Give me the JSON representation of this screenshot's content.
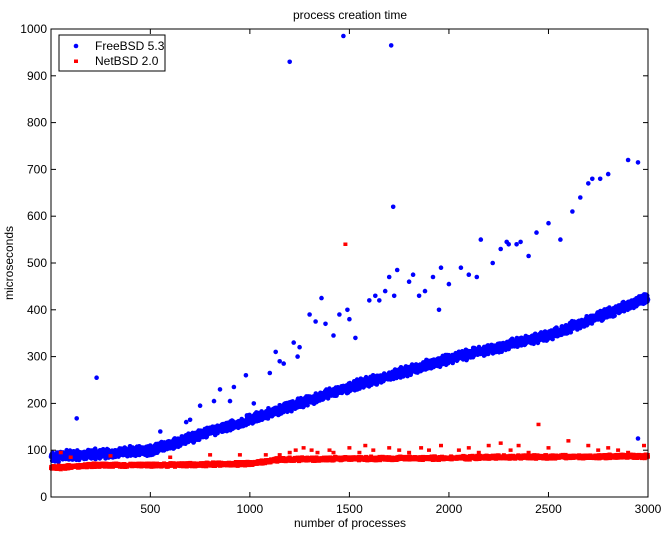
{
  "chart_data": {
    "type": "scatter",
    "title": "process creation time",
    "xlabel": "number of processes",
    "ylabel": "microseconds",
    "xlim": [
      1,
      3000
    ],
    "ylim": [
      0,
      1000
    ],
    "x_ticks": [
      500,
      1000,
      1500,
      2000,
      2500,
      3000
    ],
    "y_ticks": [
      0,
      100,
      200,
      300,
      400,
      500,
      600,
      700,
      800,
      900,
      1000
    ],
    "grid": false,
    "legend_position": "top-left",
    "series": [
      {
        "name": "FreeBSD 5.3",
        "color": "#0000ff",
        "marker": "dot",
        "trend": [
          [
            1,
            85
          ],
          [
            500,
            100
          ],
          [
            1000,
            165
          ],
          [
            1500,
            235
          ],
          [
            2000,
            295
          ],
          [
            2500,
            345
          ],
          [
            3000,
            425
          ]
        ],
        "spread": 12,
        "outliers": [
          [
            80,
            100
          ],
          [
            130,
            168
          ],
          [
            230,
            255
          ],
          [
            550,
            140
          ],
          [
            620,
            105
          ],
          [
            680,
            160
          ],
          [
            700,
            165
          ],
          [
            750,
            195
          ],
          [
            820,
            205
          ],
          [
            850,
            230
          ],
          [
            900,
            205
          ],
          [
            920,
            235
          ],
          [
            980,
            260
          ],
          [
            1020,
            200
          ],
          [
            1100,
            265
          ],
          [
            1130,
            310
          ],
          [
            1150,
            290
          ],
          [
            1170,
            285
          ],
          [
            1200,
            930
          ],
          [
            1220,
            330
          ],
          [
            1240,
            300
          ],
          [
            1250,
            320
          ],
          [
            1300,
            390
          ],
          [
            1330,
            375
          ],
          [
            1360,
            425
          ],
          [
            1380,
            370
          ],
          [
            1420,
            345
          ],
          [
            1450,
            390
          ],
          [
            1470,
            985
          ],
          [
            1490,
            400
          ],
          [
            1500,
            380
          ],
          [
            1530,
            340
          ],
          [
            1600,
            420
          ],
          [
            1630,
            430
          ],
          [
            1650,
            420
          ],
          [
            1680,
            440
          ],
          [
            1700,
            470
          ],
          [
            1710,
            965
          ],
          [
            1720,
            620
          ],
          [
            1725,
            430
          ],
          [
            1740,
            485
          ],
          [
            1800,
            460
          ],
          [
            1820,
            475
          ],
          [
            1850,
            430
          ],
          [
            1880,
            440
          ],
          [
            1920,
            470
          ],
          [
            1950,
            400
          ],
          [
            1960,
            490
          ],
          [
            2000,
            455
          ],
          [
            2060,
            490
          ],
          [
            2100,
            475
          ],
          [
            2140,
            470
          ],
          [
            2160,
            550
          ],
          [
            2220,
            500
          ],
          [
            2260,
            530
          ],
          [
            2290,
            545
          ],
          [
            2300,
            540
          ],
          [
            2340,
            540
          ],
          [
            2360,
            545
          ],
          [
            2400,
            515
          ],
          [
            2440,
            565
          ],
          [
            2500,
            585
          ],
          [
            2560,
            550
          ],
          [
            2620,
            610
          ],
          [
            2660,
            640
          ],
          [
            2700,
            670
          ],
          [
            2720,
            680
          ],
          [
            2760,
            680
          ],
          [
            2800,
            690
          ],
          [
            2900,
            720
          ],
          [
            2950,
            715
          ],
          [
            2950,
            125
          ]
        ]
      },
      {
        "name": "NetBSD 2.0",
        "color": "#ff0000",
        "marker": "square",
        "trend": [
          [
            1,
            62
          ],
          [
            200,
            68
          ],
          [
            500,
            68
          ],
          [
            1000,
            71
          ],
          [
            1150,
            80
          ],
          [
            1500,
            82
          ],
          [
            2000,
            83
          ],
          [
            2200,
            85
          ],
          [
            3000,
            87
          ]
        ],
        "spread": 5,
        "outliers": [
          [
            50,
            95
          ],
          [
            100,
            85
          ],
          [
            300,
            88
          ],
          [
            600,
            85
          ],
          [
            800,
            90
          ],
          [
            950,
            90
          ],
          [
            1080,
            90
          ],
          [
            1150,
            90
          ],
          [
            1200,
            95
          ],
          [
            1230,
            100
          ],
          [
            1270,
            105
          ],
          [
            1310,
            100
          ],
          [
            1340,
            95
          ],
          [
            1400,
            100
          ],
          [
            1420,
            95
          ],
          [
            1480,
            540
          ],
          [
            1500,
            105
          ],
          [
            1550,
            95
          ],
          [
            1580,
            110
          ],
          [
            1620,
            100
          ],
          [
            1700,
            105
          ],
          [
            1750,
            100
          ],
          [
            1800,
            95
          ],
          [
            1860,
            105
          ],
          [
            1900,
            100
          ],
          [
            1960,
            110
          ],
          [
            2050,
            100
          ],
          [
            2100,
            105
          ],
          [
            2150,
            95
          ],
          [
            2200,
            110
          ],
          [
            2260,
            115
          ],
          [
            2310,
            100
          ],
          [
            2350,
            110
          ],
          [
            2400,
            95
          ],
          [
            2450,
            155
          ],
          [
            2500,
            105
          ],
          [
            2600,
            120
          ],
          [
            2700,
            110
          ],
          [
            2750,
            100
          ],
          [
            2800,
            105
          ],
          [
            2850,
            100
          ],
          [
            2900,
            95
          ],
          [
            2980,
            110
          ]
        ]
      }
    ]
  }
}
